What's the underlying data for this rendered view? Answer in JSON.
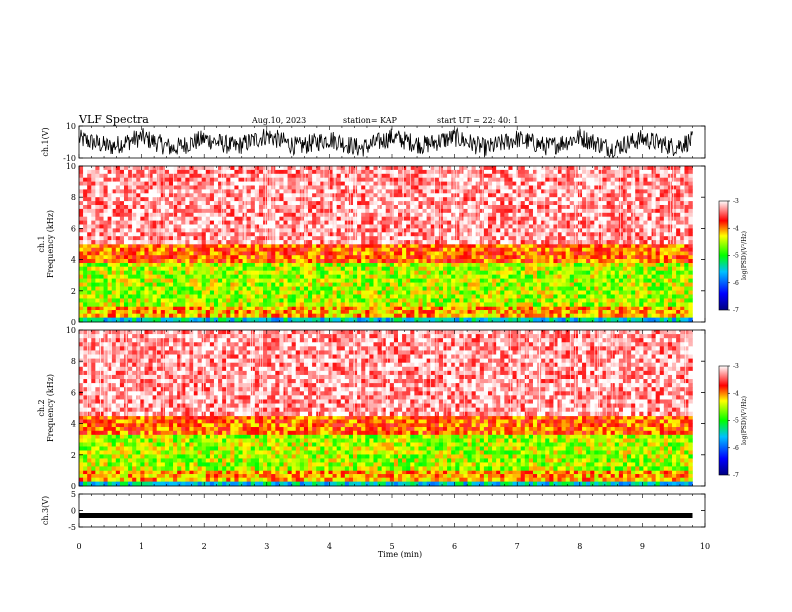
{
  "header": {
    "title": "VLF Spectra",
    "date": "Aug.10, 2023",
    "station": "station= KAP",
    "start": "start  UT  =   22: 40: 1"
  },
  "chart_data": [
    {
      "type": "line",
      "panel": "ch1-waveform",
      "ylabel": "ch.1(V)",
      "ylim": [
        -10,
        10
      ],
      "yticks": [
        "10",
        "-10"
      ],
      "x": [
        0,
        0.5,
        1,
        1.5,
        2,
        2.5,
        3,
        3.5,
        4,
        4.5,
        5,
        5.5,
        6,
        6.5,
        7,
        7.5,
        8,
        8.5,
        9,
        9.5,
        9.8
      ],
      "values": [
        2,
        -3,
        3,
        -4,
        2,
        -3,
        4,
        -3,
        2,
        -4,
        3,
        -2,
        3,
        -4,
        2,
        -3,
        3,
        -4,
        2,
        -3,
        1
      ],
      "amplitude_note": ""
    },
    {
      "type": "heatmap",
      "panel": "ch1-spectrogram",
      "ylabel": "ch.1\nFrequency (kHz)",
      "ylim": [
        0,
        10
      ],
      "yticks": [
        "0",
        "2",
        "4",
        "6",
        "8",
        "10"
      ],
      "colorbar": {
        "label": "log(PSD)(V²/Hz)",
        "ticks": [
          "-3",
          "-4",
          "-5",
          "-6",
          "-7"
        ],
        "range": [
          -7,
          -3
        ]
      },
      "bands": [
        {
          "f_from": 0,
          "f_to": 0.3,
          "log_psd": -5.5
        },
        {
          "f_from": 0.3,
          "f_to": 1.0,
          "log_psd": -4.2
        },
        {
          "f_from": 1.0,
          "f_to": 3.8,
          "log_psd": -4.6
        },
        {
          "f_from": 3.8,
          "f_to": 5.0,
          "log_psd": -4.0
        },
        {
          "f_from": 5.0,
          "f_to": 10.0,
          "log_psd": -3.3
        }
      ]
    },
    {
      "type": "heatmap",
      "panel": "ch2-spectrogram",
      "ylabel": "ch.2\nFrequency (kHz)",
      "ylim": [
        0,
        10
      ],
      "yticks": [
        "0",
        "2",
        "4",
        "6",
        "8",
        "10"
      ],
      "colorbar": {
        "label": "log(PSD)(V²/Hz)",
        "ticks": [
          "-3",
          "-4",
          "-5",
          "-6",
          "-7"
        ],
        "range": [
          -7,
          -3
        ]
      },
      "bands": [
        {
          "f_from": 0,
          "f_to": 0.3,
          "log_psd": -5.5
        },
        {
          "f_from": 0.3,
          "f_to": 1.0,
          "log_psd": -4.2
        },
        {
          "f_from": 1.0,
          "f_to": 3.3,
          "log_psd": -4.6
        },
        {
          "f_from": 3.3,
          "f_to": 4.5,
          "log_psd": -4.0
        },
        {
          "f_from": 4.5,
          "f_to": 10.0,
          "log_psd": -3.3
        }
      ]
    },
    {
      "type": "line",
      "panel": "ch3-waveform",
      "ylabel": "ch.3(V)",
      "ylim": [
        -5,
        5
      ],
      "yticks": [
        "5",
        "0",
        "-5"
      ],
      "x": [
        0,
        9.8
      ],
      "values": [
        -1.5,
        -1.5
      ]
    }
  ],
  "xaxis": {
    "label": "Time (min)",
    "ticks": [
      "0",
      "1",
      "2",
      "3",
      "4",
      "5",
      "6",
      "7",
      "8",
      "9",
      "10"
    ],
    "xlim": [
      0,
      10
    ]
  },
  "colors": {
    "red": "#ff0000",
    "yellow": "#ffff00",
    "green": "#00ff00",
    "blue": "#0000ff",
    "navy": "#000080"
  }
}
